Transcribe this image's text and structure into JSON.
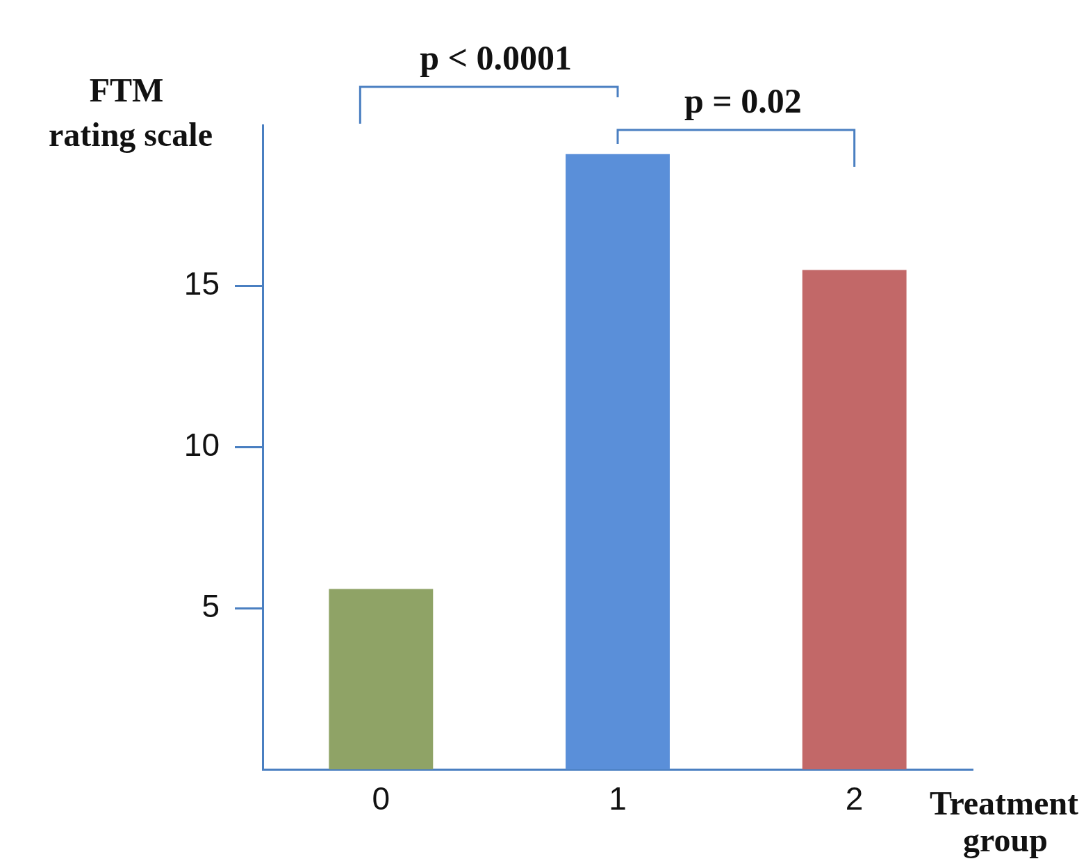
{
  "chart_data": {
    "type": "bar",
    "categories": [
      "0",
      "1",
      "2"
    ],
    "values": [
      5.6,
      19.1,
      15.5
    ],
    "colors": [
      "#8fa366",
      "#5a8fd9",
      "#c26868"
    ],
    "ylim": [
      0,
      20
    ],
    "yticks": [
      5,
      10,
      15
    ],
    "ylabel": "FTM rating scale",
    "xlabel": "Treatment group",
    "annotations": [
      "p < 0.0001",
      "p = 0.02"
    ],
    "grid": false,
    "legend": false
  }
}
